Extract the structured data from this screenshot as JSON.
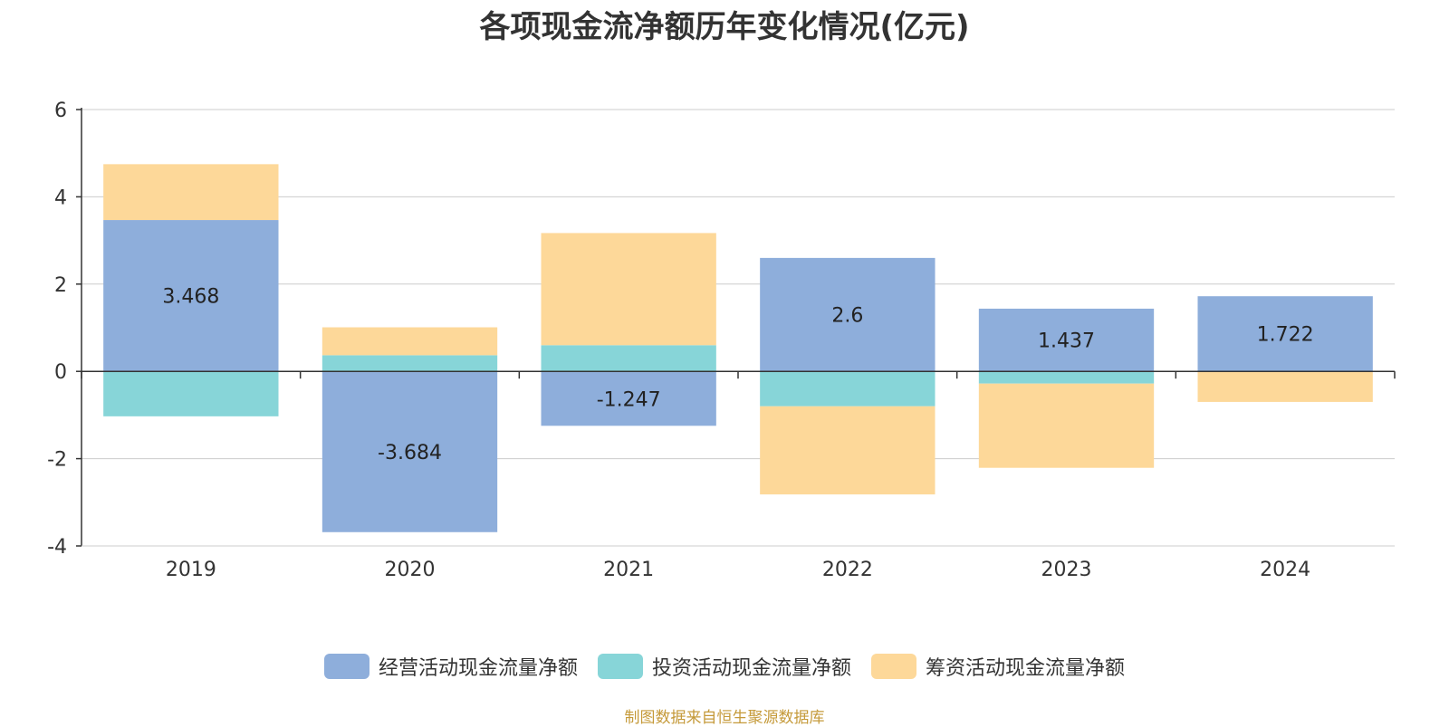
{
  "colors": {
    "operating": "#8eaedb",
    "investing": "#87d5d8",
    "financing": "#fdd899",
    "axis": "#333333",
    "grid": "#cccccc"
  },
  "source": "制图数据来自恒生聚源数据库",
  "chart_data": {
    "type": "bar",
    "stacked": true,
    "title": "各项现金流净额历年变化情况(亿元)",
    "categories": [
      "2019",
      "2020",
      "2021",
      "2022",
      "2023",
      "2024"
    ],
    "ylim": [
      -4,
      6
    ],
    "yticks": [
      6,
      4,
      2,
      0,
      -2,
      -4
    ],
    "grid": true,
    "legend_position": "bottom",
    "series": [
      {
        "name": "经营活动现金流量净额",
        "color": "#8eaedb",
        "values": [
          3.468,
          -3.684,
          -1.247,
          2.6,
          1.437,
          1.722
        ],
        "labels": [
          "3.468",
          "-3.684",
          "-1.247",
          "2.6",
          "1.437",
          "1.722"
        ]
      },
      {
        "name": "投资活动现金流量净额",
        "color": "#87d5d8",
        "values": [
          -1.03,
          0.37,
          0.6,
          -0.8,
          -0.28,
          0
        ]
      },
      {
        "name": "筹资活动现金流量净额",
        "color": "#fdd899",
        "values": [
          1.28,
          0.64,
          2.57,
          -2.02,
          -1.93,
          -0.7
        ]
      }
    ]
  }
}
